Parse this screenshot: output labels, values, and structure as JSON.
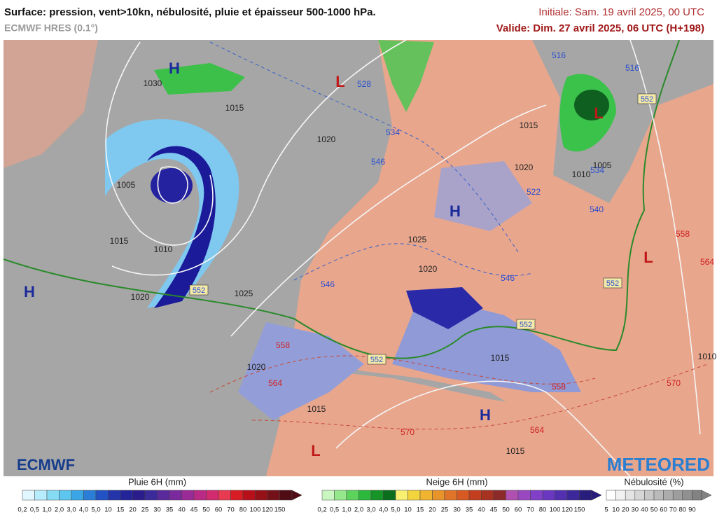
{
  "header": {
    "title": "Surface: pression, vent>10kn, nébulosité, pluie et épaisseur 500-1000 hPa.",
    "model": "ECMWF HRES (0.1°)",
    "initial": "Initiale: Sam. 19 avril 2025, 00 UTC",
    "valid": "Valide: Dim. 27 avril 2025, 06 UTC (H+198)"
  },
  "map": {
    "centers": [
      "H",
      "H",
      "H",
      "H",
      "L",
      "L",
      "L",
      "L"
    ],
    "pressure_labels": [
      "1030",
      "1015",
      "1020",
      "1005",
      "1015",
      "1010",
      "1020",
      "1025",
      "1025",
      "1020",
      "1015",
      "1020",
      "1015",
      "1020",
      "1015",
      "1015",
      "1010",
      "1010",
      "1005"
    ],
    "thickness_low": [
      "528",
      "534",
      "546",
      "546",
      "546",
      "516",
      "516",
      "522",
      "540",
      "534"
    ],
    "thickness_high": [
      "558",
      "564",
      "570",
      "564",
      "558",
      "570",
      "558",
      "564"
    ],
    "thickness_boxed": [
      "552",
      "552",
      "552",
      "552",
      "552"
    ]
  },
  "logos": {
    "left": "ECMWF",
    "right": "METEORED"
  },
  "legend": {
    "rain": {
      "title": "Pluie 6H (mm)",
      "labels": [
        "0,2",
        "0,5",
        "1,0",
        "2,0",
        "3,0",
        "4,0",
        "5,0",
        "10",
        "15",
        "20",
        "25",
        "30",
        "35",
        "40",
        "45",
        "50",
        "60",
        "70",
        "80",
        "100",
        "120",
        "150"
      ]
    },
    "snow": {
      "title": "Neige 6H (mm)",
      "labels": [
        "0,2",
        "0,5",
        "1,0",
        "2,0",
        "3,0",
        "4,0",
        "5,0",
        "10",
        "15",
        "20",
        "25",
        "30",
        "35",
        "40",
        "45",
        "50",
        "60",
        "70",
        "80",
        "100",
        "120",
        "150"
      ]
    },
    "cloud": {
      "title": "Nébulosité (%)",
      "labels": [
        "5",
        "10",
        "20",
        "30",
        "40",
        "50",
        "60",
        "70",
        "80",
        "90"
      ]
    }
  }
}
